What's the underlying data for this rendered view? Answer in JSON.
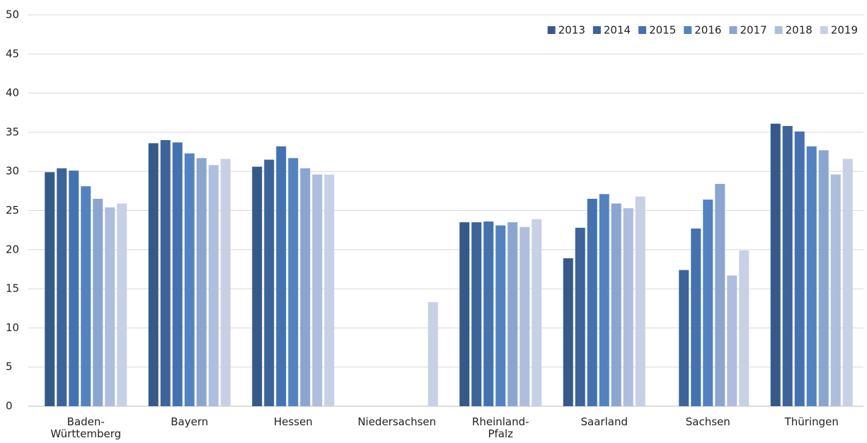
{
  "chart_data": {
    "type": "bar",
    "categories": [
      "Baden-\nWürttemberg",
      "Bayern",
      "Hessen",
      "Niedersachsen",
      "Rheinland-\nPfalz",
      "Saarland",
      "Sachsen",
      "Thüringen"
    ],
    "series": [
      {
        "name": "2013",
        "color": "#355a8a",
        "values": [
          29.9,
          33.6,
          30.6,
          null,
          23.5,
          18.9,
          null,
          36.1
        ]
      },
      {
        "name": "2014",
        "color": "#3d639b",
        "values": [
          30.4,
          34.0,
          31.5,
          null,
          23.5,
          22.8,
          17.4,
          35.8
        ]
      },
      {
        "name": "2015",
        "color": "#4472b0",
        "values": [
          30.1,
          33.7,
          33.2,
          null,
          23.6,
          26.5,
          22.7,
          35.1
        ]
      },
      {
        "name": "2016",
        "color": "#5283c0",
        "values": [
          28.1,
          32.3,
          31.7,
          null,
          23.1,
          27.1,
          26.4,
          33.2
        ]
      },
      {
        "name": "2017",
        "color": "#8aa5d0",
        "values": [
          26.5,
          31.7,
          30.4,
          null,
          23.5,
          25.9,
          28.4,
          32.7
        ]
      },
      {
        "name": "2018",
        "color": "#adbedf",
        "values": [
          25.4,
          30.8,
          29.6,
          null,
          22.9,
          25.3,
          16.7,
          29.6
        ]
      },
      {
        "name": "2019",
        "color": "#c6d1e6",
        "values": [
          25.9,
          31.6,
          29.6,
          13.3,
          23.9,
          26.8,
          19.9,
          31.6
        ]
      }
    ],
    "ylim": [
      0,
      50
    ],
    "yticks": [
      0,
      5,
      10,
      15,
      20,
      25,
      30,
      35,
      40,
      45,
      50
    ],
    "grid": true,
    "legend": "top-right"
  }
}
